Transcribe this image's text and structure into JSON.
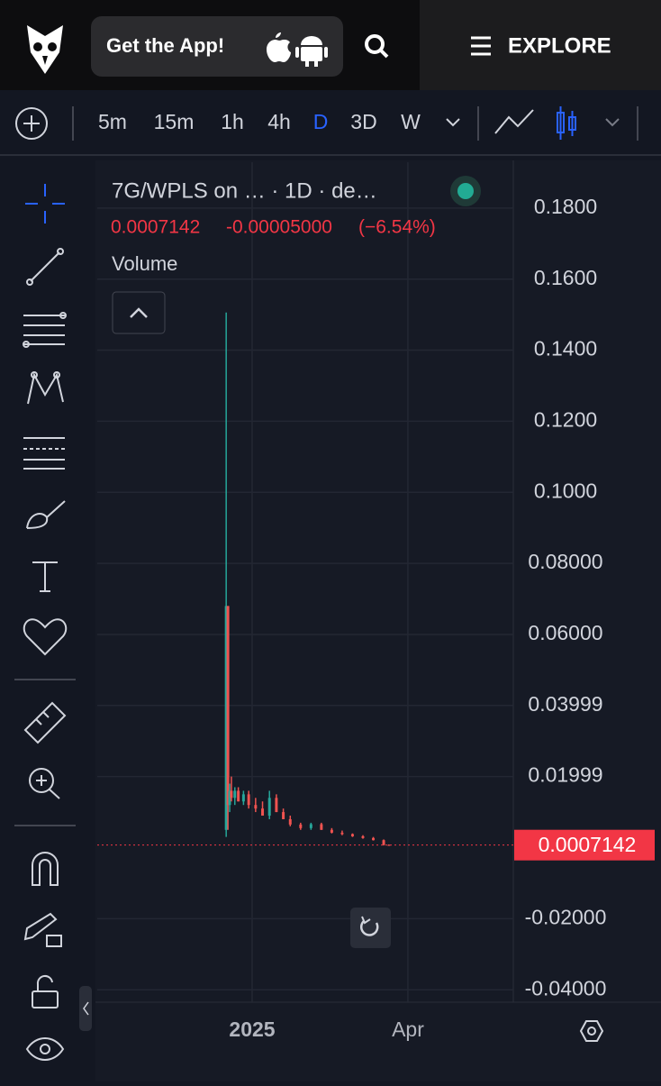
{
  "header": {
    "app_button": "Get the App!",
    "explore": "EXPLORE"
  },
  "toolbar": {
    "intervals": [
      "5m",
      "15m",
      "1h",
      "4h",
      "D",
      "3D",
      "W"
    ],
    "active": 4
  },
  "chart_data": {
    "type": "candlestick",
    "title": "7G/WPLS on … · 1D · de…",
    "change": "-0.00005000",
    "change_pct": "(−6.54%)",
    "volume_label": "Volume",
    "last_price": 0.0007142,
    "x": [
      -15,
      -14,
      -13,
      -12,
      -10,
      -8,
      -5,
      -2,
      2,
      6,
      10,
      14,
      18,
      22,
      28,
      34,
      40,
      46,
      52,
      58,
      64,
      70,
      76,
      79
    ],
    "open": [
      0.005,
      0.068,
      0.012,
      0.016,
      0.014,
      0.016,
      0.013,
      0.015,
      0.012,
      0.011,
      0.009,
      0.014,
      0.01,
      0.008,
      0.0065,
      0.0055,
      0.0066,
      0.005,
      0.0042,
      0.0038,
      0.0032,
      0.0027,
      0.0021,
      0.00076
    ],
    "high": [
      0.1506,
      0.068,
      0.018,
      0.02,
      0.017,
      0.017,
      0.016,
      0.016,
      0.014,
      0.013,
      0.016,
      0.015,
      0.011,
      0.009,
      0.007,
      0.007,
      0.007,
      0.0055,
      0.0048,
      0.004,
      0.0035,
      0.003,
      0.0023,
      0.0009
    ],
    "low": [
      0.003,
      0.005,
      0.01,
      0.013,
      0.012,
      0.013,
      0.012,
      0.011,
      0.01,
      0.009,
      0.008,
      0.01,
      0.008,
      0.006,
      0.005,
      0.005,
      0.005,
      0.004,
      0.0035,
      0.003,
      0.0025,
      0.002,
      0.0006,
      0.0006
    ],
    "close": [
      0.068,
      0.012,
      0.016,
      0.014,
      0.016,
      0.013,
      0.015,
      0.012,
      0.011,
      0.009,
      0.014,
      0.01,
      0.008,
      0.0065,
      0.0055,
      0.0066,
      0.005,
      0.0042,
      0.0038,
      0.0032,
      0.0027,
      0.0021,
      0.00076,
      0.0007142
    ],
    "up_color": "#26a69a",
    "down_color": "#ef5350",
    "xlim": [
      -89.5,
      150.9
    ],
    "xticks": [
      {
        "value": 0,
        "label": "2025"
      },
      {
        "value": 90,
        "label": "Apr"
      }
    ],
    "ylim": [
      -0.0435,
      0.1929
    ],
    "yticks": [
      {
        "value": -0.04,
        "label": "-0.04000"
      },
      {
        "value": -0.02,
        "label": "-0.02000"
      },
      {
        "value": 0.02,
        "label": "0.01999"
      },
      {
        "value": 0.04,
        "label": "0.03999"
      },
      {
        "value": 0.06,
        "label": "0.06000"
      },
      {
        "value": 0.08,
        "label": "0.08000"
      },
      {
        "value": 0.1,
        "label": "0.1000"
      },
      {
        "value": 0.12,
        "label": "0.1200"
      },
      {
        "value": 0.14,
        "label": "0.1400"
      },
      {
        "value": 0.16,
        "label": "0.1600"
      },
      {
        "value": 0.18,
        "label": "0.1800"
      }
    ],
    "grid": true
  }
}
